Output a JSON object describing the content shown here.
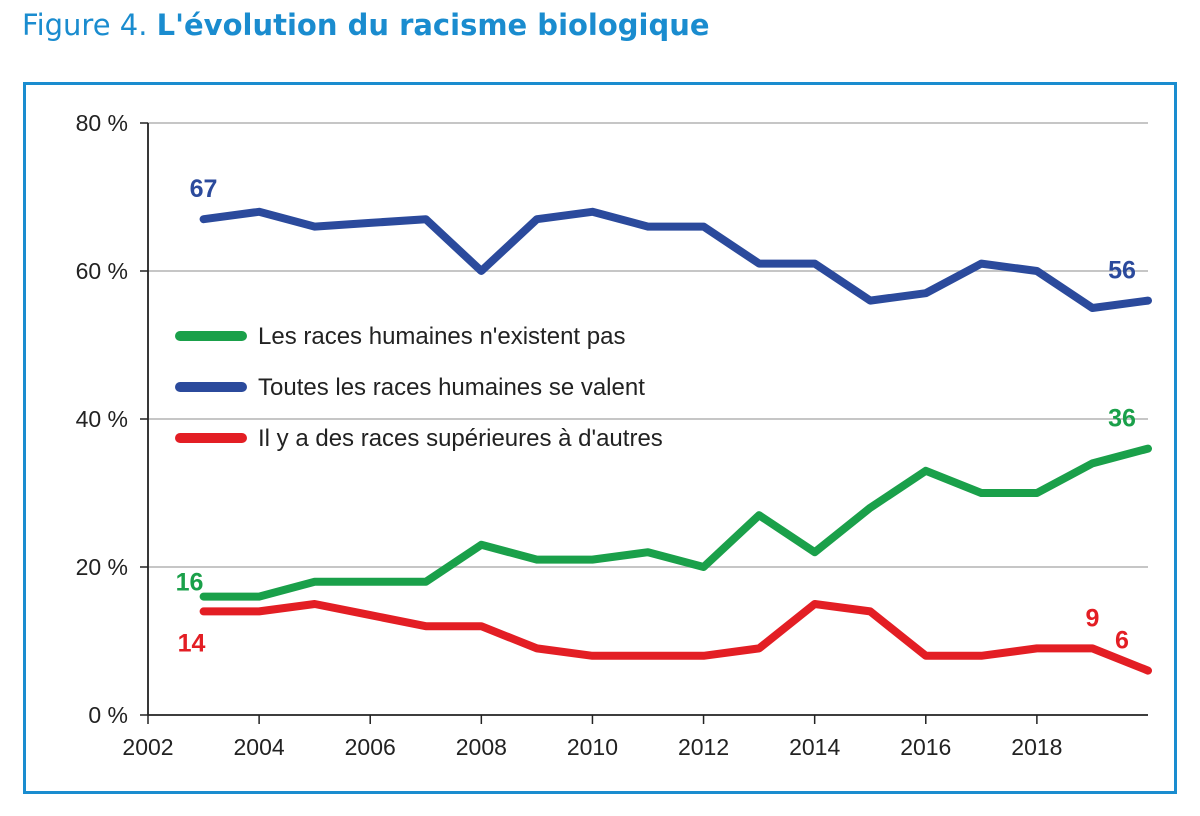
{
  "figure": {
    "prefix": "Figure 4.",
    "title": "L'évolution du racisme biologique"
  },
  "chart_data": {
    "type": "line",
    "title": "L'évolution du racisme biologique",
    "xlabel": "",
    "ylabel": "",
    "xlim": [
      2002,
      2020
    ],
    "ylim": [
      0,
      80
    ],
    "x_ticks": [
      "2002",
      "2004",
      "2006",
      "2008",
      "2010",
      "2012",
      "2014",
      "2016",
      "2018"
    ],
    "y_ticks": [
      "0 %",
      "20 %",
      "40 %",
      "60 %",
      "80 %"
    ],
    "grid": "horizontal",
    "legend_position": "center-left",
    "x": [
      2003,
      2004,
      2005,
      2006,
      2007,
      2008,
      2009,
      2010,
      2011,
      2012,
      2013,
      2014,
      2015,
      2016,
      2017,
      2018,
      2019,
      2020
    ],
    "series": [
      {
        "name": "Les races humaines n'existent pas",
        "color": "#1aa04a",
        "values": [
          16,
          16,
          18,
          18,
          18,
          23,
          21,
          21,
          22,
          20,
          27,
          22,
          28,
          33,
          30,
          30,
          34,
          36
        ],
        "labels": [
          {
            "index": 0,
            "text": "16",
            "pos": "above-left"
          },
          {
            "index": 17,
            "text": "36",
            "pos": "above-left"
          }
        ]
      },
      {
        "name": "Toutes les races humaines se valent",
        "color": "#2b4a9c",
        "values": [
          67,
          68,
          66,
          66.5,
          67,
          60,
          67,
          68,
          66,
          66,
          61,
          61,
          56,
          57,
          61,
          60,
          55,
          56
        ],
        "labels": [
          {
            "index": 0,
            "text": "67",
            "pos": "above"
          },
          {
            "index": 17,
            "text": "56",
            "pos": "above-left"
          }
        ]
      },
      {
        "name": "Il y a des races supérieures à d'autres",
        "color": "#e31e24",
        "values": [
          14,
          14,
          15,
          13.5,
          12,
          12,
          9,
          8,
          8,
          8,
          9,
          15,
          14,
          8,
          8,
          9,
          9,
          6
        ],
        "labels": [
          {
            "index": 0,
            "text": "14",
            "pos": "below"
          },
          {
            "index": 16,
            "text": "9",
            "pos": "above"
          },
          {
            "index": 17,
            "text": "6",
            "pos": "above-left"
          }
        ]
      }
    ]
  }
}
